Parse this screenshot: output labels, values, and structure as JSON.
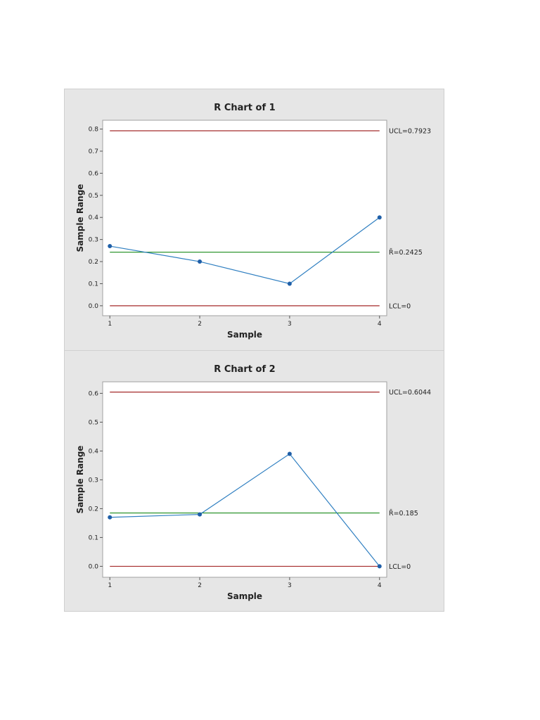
{
  "colors": {
    "panel_bg": "#e6e6e6",
    "plot_bg": "#ffffff",
    "limit_line": "#a52a2a",
    "center_line": "#1a8c1a",
    "series": "#2f7fc1",
    "marker": "#1f5fa8"
  },
  "chart_data": [
    {
      "type": "line",
      "title": "R Chart of 1",
      "xlabel": "Sample",
      "ylabel": "Sample Range",
      "x": [
        1,
        2,
        3,
        4
      ],
      "xlim": [
        0.92,
        4.08
      ],
      "ylim": [
        -0.045,
        0.84
      ],
      "yticks": [
        "0.0",
        "0.1",
        "0.2",
        "0.3",
        "0.4",
        "0.5",
        "0.6",
        "0.7",
        "0.8"
      ],
      "series": [
        {
          "values": [
            0.27,
            0.2,
            0.1,
            0.4
          ]
        }
      ],
      "limits": [
        {
          "kind": "UCL",
          "value": 0.7923,
          "label": "UCL=0.7923"
        },
        {
          "kind": "center",
          "value": 0.2425,
          "label": "R̄=0.2425"
        },
        {
          "kind": "LCL",
          "value": 0,
          "label": "LCL=0"
        }
      ]
    },
    {
      "type": "line",
      "title": "R Chart of 2",
      "xlabel": "Sample",
      "ylabel": "Sample Range",
      "x": [
        1,
        2,
        3,
        4
      ],
      "xlim": [
        0.92,
        4.08
      ],
      "ylim": [
        -0.038,
        0.64
      ],
      "yticks": [
        "0.0",
        "0.1",
        "0.2",
        "0.3",
        "0.4",
        "0.5",
        "0.6"
      ],
      "series": [
        {
          "values": [
            0.17,
            0.18,
            0.39,
            0.0
          ]
        }
      ],
      "limits": [
        {
          "kind": "UCL",
          "value": 0.6044,
          "label": "UCL=0.6044"
        },
        {
          "kind": "center",
          "value": 0.185,
          "label": "R̄=0.185"
        },
        {
          "kind": "LCL",
          "value": 0,
          "label": "LCL=0"
        }
      ]
    }
  ]
}
